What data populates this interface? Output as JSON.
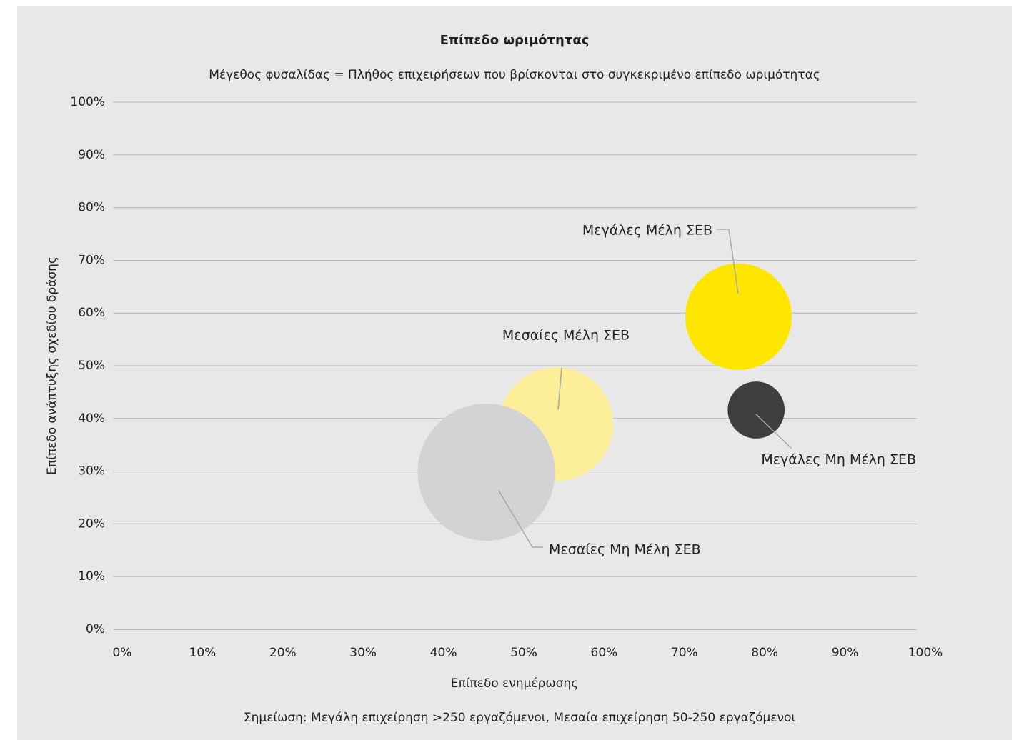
{
  "chart_data": {
    "type": "bubble",
    "title": "Επίπεδο ωριμότητας",
    "subtitle": "Μέγεθος φυσαλίδας = Πλήθος επιχειρήσεων που βρίσκονται στο συγκεκριμένο επίπεδο ωριμότητας",
    "xlabel": "Επίπεδο ενημέρωσης",
    "ylabel": "Επίπεδο ανάπτυξης σχεδίου δράσης",
    "note": "Σημείωση: Μεγάλη επιχείρηση >250 εργαζόμενοι, Μεσαία επιχείρηση 50-250 εργαζόμενοι",
    "series": [
      {
        "name": "Μεσαίες Μέλη ΣΕΒ",
        "color": "#fdee99",
        "x": [
          55.1
        ],
        "values": [
          38.9
        ],
        "sizes": [
          40
        ]
      },
      {
        "name": "Μεσαίες Μη Μέλη ΣΕΒ",
        "color": "#d3d3d5",
        "x": [
          46.4
        ],
        "values": [
          29.8
        ],
        "sizes": [
          58
        ]
      },
      {
        "name": "Μεγάλες Μέλη ΣΕΒ",
        "color": "#ffe600",
        "x": [
          77.8
        ],
        "values": [
          59.3
        ],
        "sizes": [
          35
        ]
      },
      {
        "name": "Μεγάλες Μη Μέλη ΣΕΒ",
        "color": "#3e3e40",
        "x": [
          80.0
        ],
        "values": [
          41.6
        ],
        "sizes": [
          10
        ]
      }
    ],
    "xlim": [
      0,
      100
    ],
    "ylim": [
      0,
      100
    ],
    "xticks": [
      {
        "value": 0,
        "label": "0%"
      },
      {
        "value": 10,
        "label": "10%"
      },
      {
        "value": 20,
        "label": "20%"
      },
      {
        "value": 30,
        "label": "30%"
      },
      {
        "value": 40,
        "label": "40%"
      },
      {
        "value": 50,
        "label": "50%"
      },
      {
        "value": 60,
        "label": "60%"
      },
      {
        "value": 70,
        "label": "70%"
      },
      {
        "value": 80,
        "label": "80%"
      },
      {
        "value": 90,
        "label": "90%"
      },
      {
        "value": 100,
        "label": "100%"
      }
    ],
    "yticks": [
      {
        "value": 0,
        "label": "0%"
      },
      {
        "value": 10,
        "label": "10%"
      },
      {
        "value": 20,
        "label": "20%"
      },
      {
        "value": 30,
        "label": "30%"
      },
      {
        "value": 40,
        "label": "40%"
      },
      {
        "value": 50,
        "label": "50%"
      },
      {
        "value": 60,
        "label": "60%"
      },
      {
        "value": 70,
        "label": "70%"
      },
      {
        "value": 80,
        "label": "80%"
      },
      {
        "value": 90,
        "label": "90%"
      },
      {
        "value": 100,
        "label": "100%"
      }
    ],
    "grid": true
  }
}
